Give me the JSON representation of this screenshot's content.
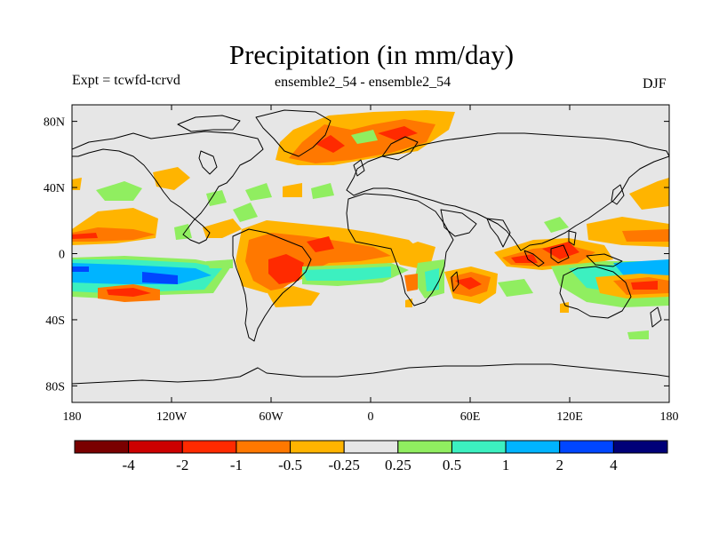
{
  "title": "Precipitation (in mm/day)",
  "experiment_label": "Expt = tcwfd-tcrvd",
  "ensemble_label": "ensemble2_54 - ensemble2_54",
  "season_label": "DJF",
  "map": {
    "projection": "cylindrical-equidistant",
    "lon_range": [
      -180,
      180
    ],
    "lat_range": [
      -90,
      90
    ],
    "x_ticks": [
      "180",
      "120W",
      "60W",
      "0",
      "60E",
      "120E",
      "180"
    ],
    "y_ticks": [
      "80N",
      "40N",
      "0",
      "40S",
      "80S"
    ],
    "background_color": "#e6e6e6"
  },
  "colorbar": {
    "colors": [
      "#7a0000",
      "#cc0000",
      "#ff2a00",
      "#ff7800",
      "#ffb400",
      "#e6e6e6",
      "#90ee60",
      "#3cf0c0",
      "#00b4ff",
      "#0046ff",
      "#000078"
    ],
    "labels": [
      "-4",
      "-2",
      "-1",
      "-0.5",
      "-0.25",
      "0.25",
      "0.5",
      "1",
      "2",
      "4"
    ]
  }
}
